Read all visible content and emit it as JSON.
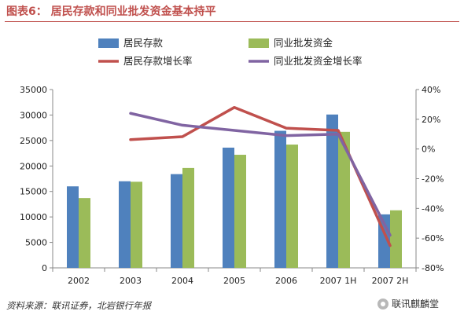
{
  "header": {
    "title": "图表6：  居民存款和同业批发资金基本持平"
  },
  "footer": {
    "source": "资料来源：联讯证券，北岩银行年报",
    "watermark": "联讯麒麟堂"
  },
  "colors": {
    "deposit_bar": "#4f81bd",
    "wholesale_bar": "#9bbb59",
    "deposit_growth": "#c0504d",
    "wholesale_growth": "#8064a2",
    "title": "#c0504d"
  },
  "chart_data": {
    "type": "bar",
    "title": "居民存款和同业批发资金基本持平",
    "categories": [
      "2002",
      "2003",
      "2004",
      "2005",
      "2006",
      "2007 1H",
      "2007 2H"
    ],
    "series": [
      {
        "name": "居民存款",
        "type": "bar",
        "axis": "left",
        "values": [
          16000,
          17000,
          18400,
          23600,
          26900,
          30100,
          10500
        ]
      },
      {
        "name": "同业批发资金",
        "type": "bar",
        "axis": "left",
        "values": [
          13700,
          16900,
          19600,
          22200,
          24200,
          26700,
          11300
        ]
      },
      {
        "name": "居民存款增长率",
        "type": "line",
        "axis": "right",
        "values": [
          null,
          6.3,
          8.3,
          28,
          14,
          12.5,
          -65
        ]
      },
      {
        "name": "同业批发资金增长率",
        "type": "line",
        "axis": "right",
        "values": [
          null,
          24,
          16,
          12.5,
          9,
          10,
          -58
        ]
      }
    ],
    "left_axis": {
      "min": 0,
      "max": 35000,
      "ticks": [
        "0",
        "5000",
        "10000",
        "15000",
        "20000",
        "25000",
        "30000",
        "35000"
      ]
    },
    "right_axis": {
      "min": -80,
      "max": 40,
      "ticks": [
        "-80%",
        "-60%",
        "-40%",
        "-20%",
        "0%",
        "20%",
        "40%"
      ]
    },
    "grid": false,
    "legend": "top"
  }
}
